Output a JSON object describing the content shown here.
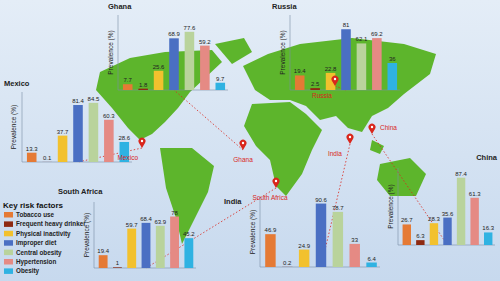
{
  "chart_data": [
    {
      "type": "bar",
      "title": "Ghana",
      "annotation": "Ghana",
      "y_label": "Prevalence (%)",
      "categories": [
        null,
        null,
        null,
        null,
        null,
        null,
        null
      ],
      "values": [
        7.7,
        1.8,
        25.6,
        68.9,
        77.6,
        59.2,
        9.7
      ],
      "colors": [
        "#e57a35",
        "#8e2a12",
        "#f2c12e",
        "#4a6fc3",
        "#b9d39c",
        "#e58a84",
        "#2fb2e2"
      ],
      "ylim": [
        0,
        100
      ],
      "tick_labels": false,
      "data_labels": true
    },
    {
      "type": "bar",
      "title": "Russia",
      "annotation": "Russia",
      "y_label": "Prevalence (%)",
      "categories": [
        null,
        null,
        null,
        null,
        null,
        null,
        null
      ],
      "values": [
        19.4,
        2.5,
        22.8,
        81,
        62.1,
        69.2,
        36
      ],
      "colors": [
        "#e57a35",
        "#8e2a12",
        "#f2c12e",
        "#4a6fc3",
        "#b9d39c",
        "#e58a84",
        "#2fb2e2"
      ],
      "ylim": [
        0,
        100
      ],
      "tick_labels": false,
      "data_labels": true
    },
    {
      "type": "bar",
      "title": "Mexico",
      "annotation": "Mexico",
      "y_label": "Prevalence (%)",
      "categories": [
        null,
        null,
        null,
        null,
        null,
        null,
        null
      ],
      "values": [
        13.3,
        0.1,
        37.7,
        81.4,
        84.5,
        60.3,
        28.6
      ],
      "colors": [
        "#e57a35",
        "#8e2a12",
        "#f2c12e",
        "#4a6fc3",
        "#b9d39c",
        "#e58a84",
        "#2fb2e2"
      ],
      "ylim": [
        0,
        100
      ],
      "tick_labels": false,
      "data_labels": true
    },
    {
      "type": "bar",
      "title": "China",
      "annotation": "China",
      "y_label": "Prevalence (%)",
      "categories": [
        null,
        null,
        null,
        null,
        null,
        null,
        null
      ],
      "values": [
        26.7,
        6.3,
        28.3,
        35.6,
        87.4,
        61.3,
        16.3
      ],
      "colors": [
        "#e57a35",
        "#8e2a12",
        "#f2c12e",
        "#4a6fc3",
        "#b9d39c",
        "#e58a84",
        "#2fb2e2"
      ],
      "ylim": [
        0,
        100
      ],
      "tick_labels": false,
      "data_labels": true
    },
    {
      "type": "bar",
      "title": "South Africa",
      "annotation": "South Africa",
      "y_label": "Prevalence (%)",
      "categories": [
        null,
        null,
        null,
        null,
        null,
        null,
        null
      ],
      "values": [
        19.4,
        1,
        59.7,
        68.4,
        63.9,
        78,
        45.2
      ],
      "colors": [
        "#e57a35",
        "#8e2a12",
        "#f2c12e",
        "#4a6fc3",
        "#b9d39c",
        "#e58a84",
        "#2fb2e2"
      ],
      "ylim": [
        0,
        100
      ],
      "tick_labels": false,
      "data_labels": true
    },
    {
      "type": "bar",
      "title": "India",
      "annotation": "India",
      "y_label": "Prevalence (%)",
      "categories": [
        null,
        null,
        null,
        null,
        null,
        null,
        null
      ],
      "values": [
        46.9,
        0.2,
        24.9,
        90.6,
        78.7,
        33,
        6.4
      ],
      "colors": [
        "#e57a35",
        "#8e2a12",
        "#f2c12e",
        "#4a6fc3",
        "#b9d39c",
        "#e58a84",
        "#2fb2e2"
      ],
      "ylim": [
        0,
        100
      ],
      "tick_labels": false,
      "data_labels": true
    }
  ],
  "key": {
    "title": "Key risk factors",
    "labels": [
      "Tobacco use",
      "Frequent heavy drinker",
      "Physical inactivity",
      "Improper diet",
      "Central obesity",
      "Hypertension",
      "Obesity"
    ],
    "colors": [
      "#e57a35",
      "#8e2a12",
      "#f2c12e",
      "#4a6fc3",
      "#b9d39c",
      "#e58a84",
      "#2fb2e2"
    ]
  }
}
